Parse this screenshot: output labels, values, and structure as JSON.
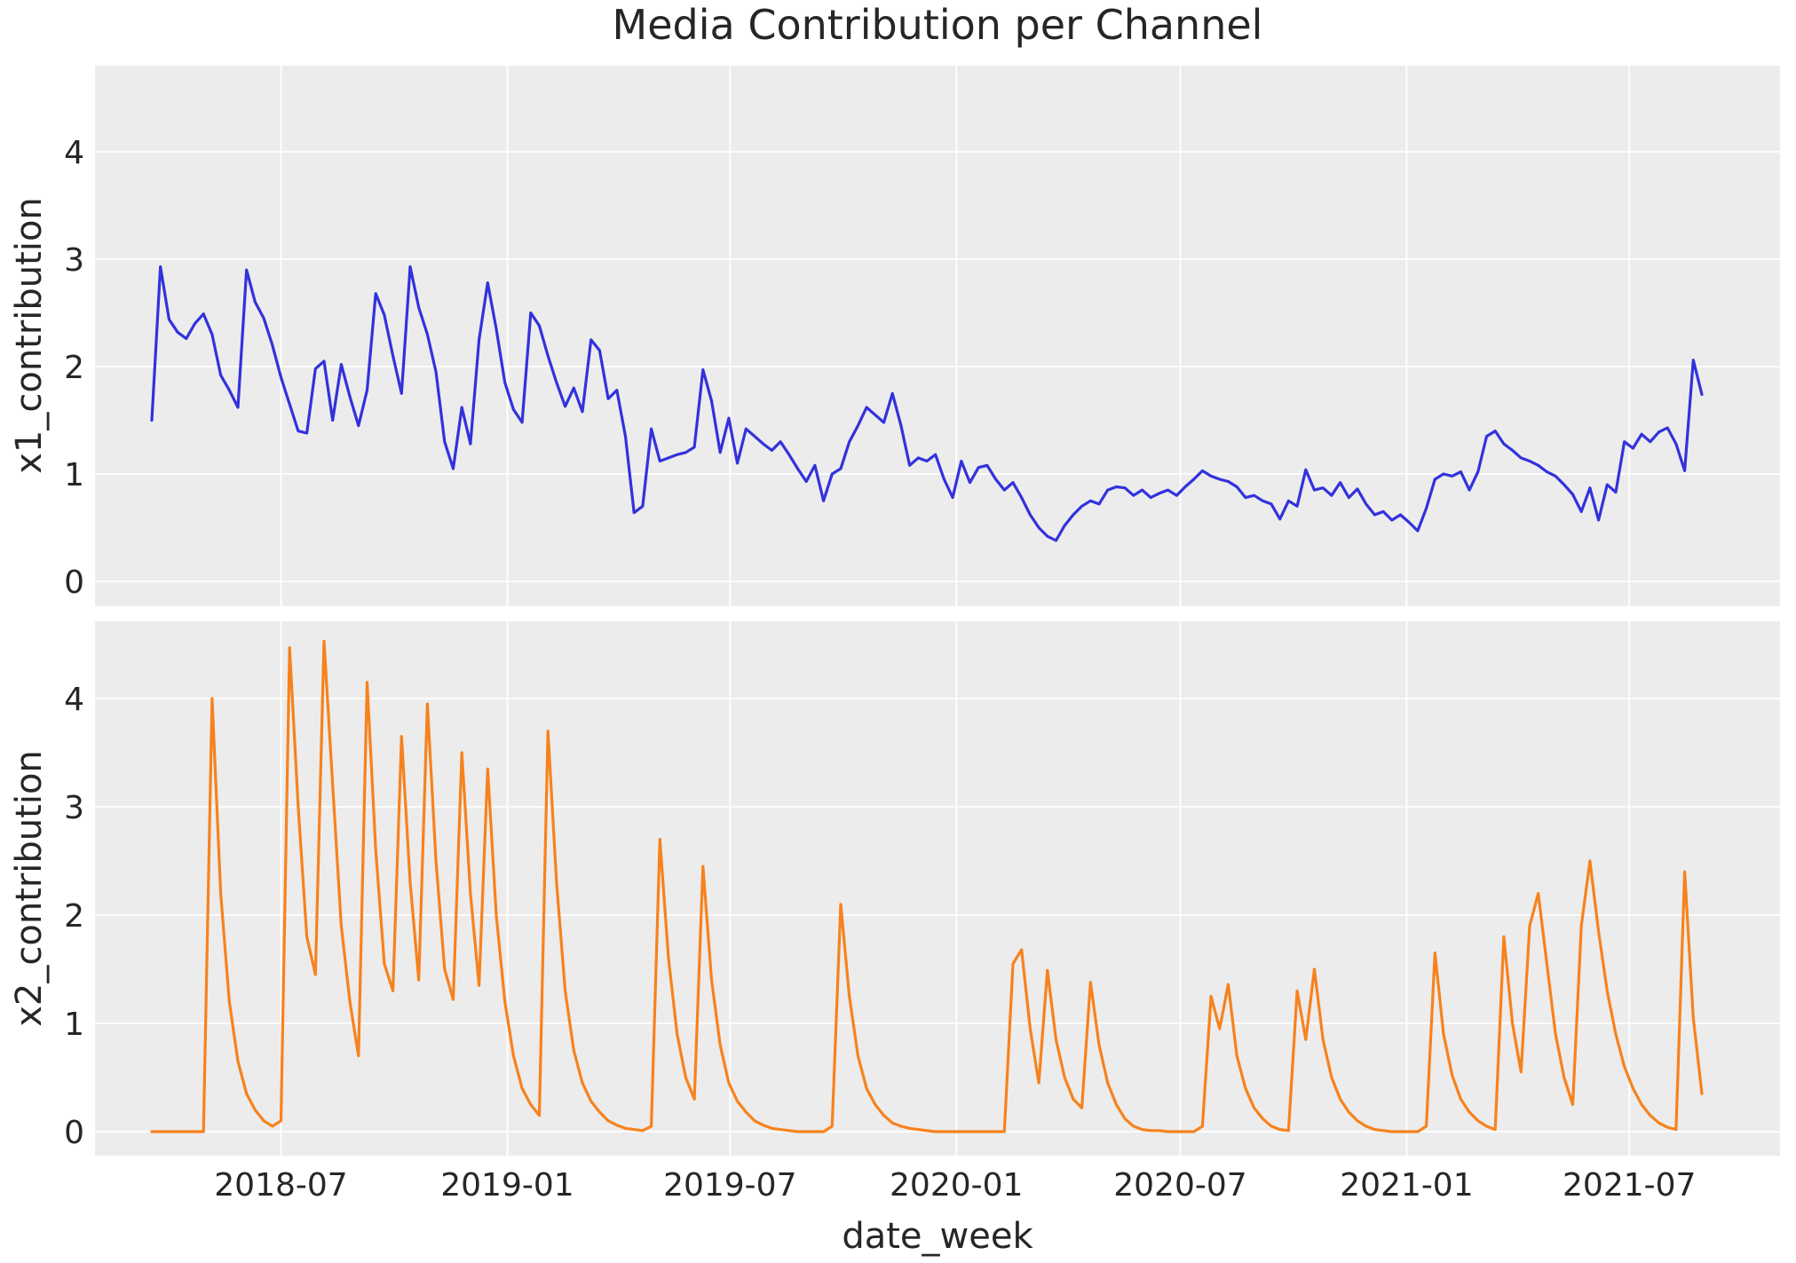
{
  "figure": {
    "title": "Media Contribution per Channel",
    "background": "#ffffff",
    "plot_background": "#ececec",
    "grid_color": "#ffffff",
    "text_color": "#262626"
  },
  "x_axis": {
    "label": "date_week",
    "tick_labels": [
      "2018-07",
      "2019-01",
      "2019-07",
      "2020-01",
      "2020-07",
      "2021-01",
      "2021-07"
    ],
    "tick_dates": [
      "2018-07-01",
      "2019-01-01",
      "2019-07-01",
      "2020-01-01",
      "2020-07-01",
      "2021-01-01",
      "2021-07-01"
    ]
  },
  "chart_data": [
    {
      "type": "line",
      "subplot": "top",
      "series_name": "x1_contribution",
      "ylabel": "x1_contribution",
      "color": "#3232dd",
      "x_start": "2018-03-18",
      "x_step_days": 7,
      "ylim": [
        -0.23,
        4.8
      ],
      "yticks": [
        0,
        1,
        2,
        3,
        4
      ],
      "grid": true,
      "legend": "none",
      "values": [
        1.5,
        2.93,
        2.44,
        2.32,
        2.26,
        2.4,
        2.49,
        2.3,
        1.92,
        1.78,
        1.62,
        2.9,
        2.6,
        2.45,
        2.2,
        1.9,
        1.65,
        1.4,
        1.38,
        1.98,
        2.05,
        1.5,
        2.02,
        1.72,
        1.45,
        1.78,
        2.68,
        2.48,
        2.1,
        1.75,
        2.93,
        2.55,
        2.3,
        1.95,
        1.3,
        1.05,
        1.62,
        1.28,
        2.25,
        2.78,
        2.35,
        1.85,
        1.6,
        1.48,
        2.5,
        2.38,
        2.1,
        1.85,
        1.63,
        1.8,
        1.58,
        2.25,
        2.15,
        1.7,
        1.78,
        1.35,
        0.64,
        0.7,
        1.42,
        1.12,
        1.15,
        1.18,
        1.2,
        1.25,
        1.97,
        1.68,
        1.2,
        1.52,
        1.1,
        1.42,
        1.35,
        1.28,
        1.22,
        1.3,
        1.18,
        1.05,
        0.93,
        1.08,
        0.75,
        1.0,
        1.05,
        1.3,
        1.45,
        1.62,
        1.55,
        1.48,
        1.75,
        1.45,
        1.08,
        1.15,
        1.12,
        1.18,
        0.95,
        0.78,
        1.12,
        0.92,
        1.06,
        1.08,
        0.95,
        0.85,
        0.92,
        0.78,
        0.62,
        0.5,
        0.42,
        0.38,
        0.52,
        0.62,
        0.7,
        0.75,
        0.72,
        0.85,
        0.88,
        0.87,
        0.8,
        0.85,
        0.78,
        0.82,
        0.85,
        0.8,
        0.88,
        0.95,
        1.03,
        0.98,
        0.95,
        0.93,
        0.88,
        0.78,
        0.8,
        0.75,
        0.72,
        0.58,
        0.75,
        0.7,
        1.04,
        0.85,
        0.87,
        0.8,
        0.92,
        0.78,
        0.86,
        0.72,
        0.62,
        0.65,
        0.57,
        0.62,
        0.55,
        0.47,
        0.68,
        0.95,
        1.0,
        0.98,
        1.02,
        0.85,
        1.02,
        1.35,
        1.4,
        1.28,
        1.22,
        1.15,
        1.12,
        1.08,
        1.02,
        0.98,
        0.9,
        0.81,
        0.65,
        0.87,
        0.57,
        0.9,
        0.83,
        1.3,
        1.24,
        1.37,
        1.3,
        1.39,
        1.43,
        1.28,
        1.03,
        2.06,
        1.74
      ]
    },
    {
      "type": "line",
      "subplot": "bottom",
      "series_name": "x2_contribution",
      "ylabel": "x2_contribution",
      "color": "#f7821d",
      "x_start": "2018-03-18",
      "x_step_days": 7,
      "ylim": [
        -0.22,
        4.71
      ],
      "yticks": [
        0,
        1,
        2,
        3,
        4
      ],
      "grid": true,
      "legend": "none",
      "values": [
        0,
        0,
        0,
        0,
        0,
        0,
        0,
        4.0,
        2.2,
        1.2,
        0.65,
        0.35,
        0.2,
        0.1,
        0.05,
        0.1,
        4.47,
        3.0,
        1.8,
        1.45,
        4.53,
        3.2,
        1.9,
        1.2,
        0.7,
        4.15,
        2.6,
        1.55,
        1.3,
        3.65,
        2.3,
        1.4,
        3.95,
        2.5,
        1.5,
        1.22,
        3.5,
        2.2,
        1.35,
        3.35,
        2.0,
        1.2,
        0.7,
        0.4,
        0.25,
        0.15,
        3.7,
        2.3,
        1.3,
        0.75,
        0.45,
        0.28,
        0.18,
        0.1,
        0.06,
        0.03,
        0.02,
        0.01,
        0.05,
        2.7,
        1.6,
        0.9,
        0.5,
        0.3,
        2.45,
        1.4,
        0.8,
        0.45,
        0.28,
        0.18,
        0.1,
        0.06,
        0.03,
        0.02,
        0.01,
        0,
        0,
        0,
        0,
        0.05,
        2.1,
        1.25,
        0.7,
        0.4,
        0.25,
        0.15,
        0.08,
        0.05,
        0.03,
        0.02,
        0.01,
        0,
        0,
        0,
        0,
        0,
        0,
        0,
        0,
        0,
        1.55,
        1.68,
        0.95,
        0.45,
        1.49,
        0.85,
        0.5,
        0.3,
        0.22,
        1.38,
        0.8,
        0.45,
        0.25,
        0.12,
        0.05,
        0.02,
        0.01,
        0.01,
        0,
        0,
        0,
        0,
        0.05,
        1.25,
        0.95,
        1.36,
        0.7,
        0.4,
        0.22,
        0.12,
        0.05,
        0.02,
        0.01,
        1.3,
        0.85,
        1.5,
        0.85,
        0.5,
        0.3,
        0.18,
        0.1,
        0.05,
        0.02,
        0.01,
        0,
        0,
        0,
        0,
        0.05,
        1.65,
        0.9,
        0.52,
        0.3,
        0.18,
        0.1,
        0.05,
        0.02,
        1.8,
        1.0,
        0.55,
        1.9,
        2.2,
        1.55,
        0.9,
        0.5,
        0.25,
        1.9,
        2.5,
        1.85,
        1.3,
        0.9,
        0.6,
        0.4,
        0.25,
        0.15,
        0.08,
        0.04,
        0.02,
        2.4,
        1.05,
        0.35
      ]
    }
  ]
}
